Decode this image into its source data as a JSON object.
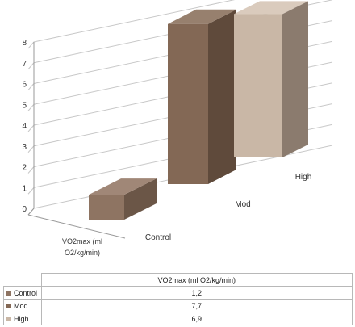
{
  "chart_data": {
    "type": "bar",
    "subtype": "3d-column",
    "categories": [
      "Control",
      "Mod",
      "High"
    ],
    "values": [
      1.2,
      7.7,
      6.9
    ],
    "series_label": "VO2max (ml O2/kg/min)",
    "ylim": [
      0,
      8
    ],
    "yticks": [
      "0",
      "1",
      "2",
      "3",
      "4",
      "5",
      "6",
      "7",
      "8"
    ],
    "grid": true,
    "decimal_separator": ",",
    "colors": {
      "Control": {
        "front": "#8e7462",
        "side": "#6b5647",
        "top": "#a08777",
        "swatch": "#8e7462"
      },
      "Mod": {
        "front": "#836855",
        "side": "#5f4a3b",
        "top": "#97806e",
        "swatch": "#836855"
      },
      "High": {
        "front": "#c9b7a6",
        "side": "#8b7b6e",
        "top": "#dacbbd",
        "swatch": "#c9b7a6"
      }
    },
    "gridline_color": "#c8c8c8",
    "axis_color": "#999999"
  },
  "table": {
    "header": "VO2max (ml O2/kg/min)",
    "rows": [
      {
        "label": "Control",
        "value": "1,2"
      },
      {
        "label": "Mod",
        "value": "7,7"
      },
      {
        "label": "High",
        "value": "6,9"
      }
    ]
  }
}
